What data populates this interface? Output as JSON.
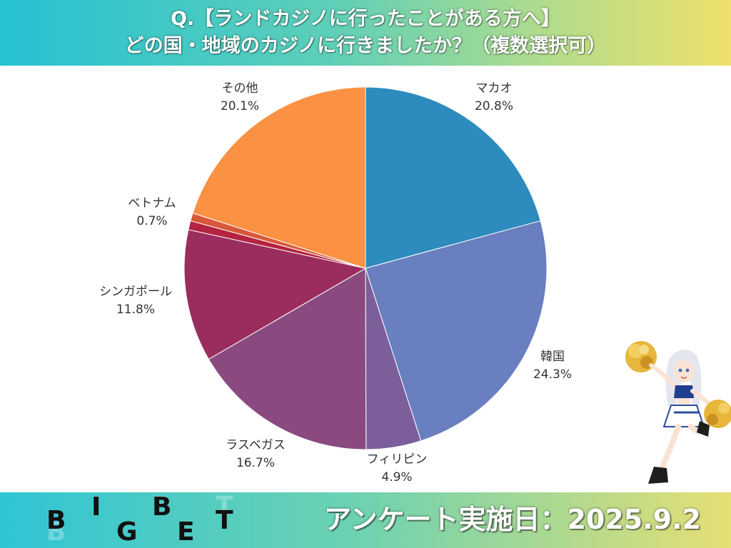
{
  "header": {
    "line1": "Q.【ランドカジノに行ったことがある方へ】",
    "line2": "どの国・地域のカジノに行きましたか？（複数選択可）"
  },
  "chart_data": {
    "type": "pie",
    "start": "12 o'clock, clockwise",
    "slices": [
      {
        "label": "マカオ",
        "value": 20.8,
        "value_label": "20.8%",
        "color": "#2e8bbd"
      },
      {
        "label": "韓国",
        "value": 24.3,
        "value_label": "24.3%",
        "color": "#6a7fbf"
      },
      {
        "label": "フィリピン",
        "value": 4.9,
        "value_label": "4.9%",
        "color": "#7b5e9a"
      },
      {
        "label": "ラスベガス",
        "value": 16.7,
        "value_label": "16.7%",
        "color": "#8a4a80"
      },
      {
        "label": "シンガポール",
        "value": 11.8,
        "value_label": "11.8%",
        "color": "#9a2d5e"
      },
      {
        "label": "",
        "value": 0.8,
        "value_label": "",
        "color": "#b52340"
      },
      {
        "label": "ベトナム",
        "value": 0.7,
        "value_label": "0.7%",
        "color": "#d8583a"
      },
      {
        "label": "その他",
        "value": 20.1,
        "value_label": "20.1%",
        "color": "#fb9142"
      }
    ]
  },
  "footer": {
    "logo_letters": [
      "B",
      "I",
      "G",
      "B",
      "E",
      "T"
    ],
    "survey_date": "アンケート実施日：2025.9.2"
  },
  "mascot": {
    "icon": "cheerleader-character-illustration"
  }
}
